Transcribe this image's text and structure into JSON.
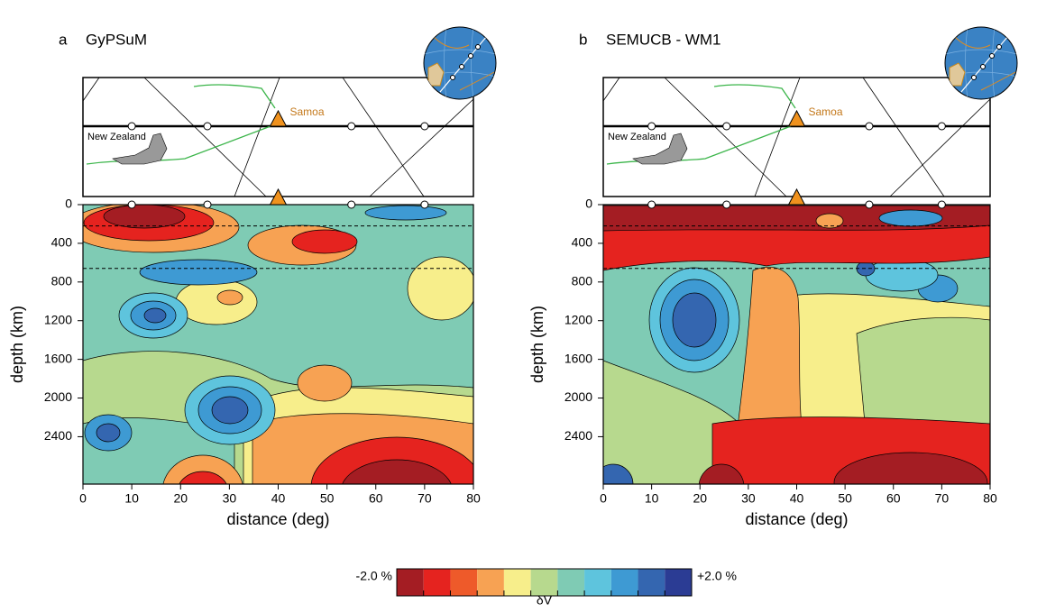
{
  "chart_data": [
    {
      "type": "contour",
      "panel": "a",
      "title": "GyPSuM",
      "xlabel": "distance (deg)",
      "ylabel": "depth (km)",
      "xlim": [
        0,
        80
      ],
      "ylim": [
        0,
        2890
      ],
      "y_inverted": true,
      "xticks": [
        0,
        10,
        20,
        30,
        40,
        50,
        60,
        70,
        80
      ],
      "yticks": [
        0,
        400,
        800,
        1200,
        1600,
        2000,
        2400
      ],
      "stations": [
        10,
        25.5,
        55,
        70
      ],
      "samoa_distance": 40,
      "discontinuities": [
        220,
        660
      ],
      "map_labels": [
        "New Zealand",
        "Samoa"
      ]
    },
    {
      "type": "contour",
      "panel": "b",
      "title": "SEMUCB - WM1",
      "xlabel": "distance (deg)",
      "ylabel": "depth (km)",
      "xlim": [
        0,
        80
      ],
      "ylim": [
        0,
        2890
      ],
      "y_inverted": true,
      "xticks": [
        0,
        10,
        20,
        30,
        40,
        50,
        60,
        70,
        80
      ],
      "yticks": [
        0,
        400,
        800,
        1200,
        1600,
        2000,
        2400
      ],
      "stations": [
        10,
        25.5,
        55,
        70
      ],
      "samoa_distance": 40,
      "discontinuities": [
        220,
        660
      ],
      "map_labels": [
        "New Zealand",
        "Samoa"
      ]
    }
  ],
  "colorbar": {
    "labels": [
      "-2.0 %",
      "+2.0 %"
    ],
    "title": "δV",
    "colors": [
      "#a41d23",
      "#e5231f",
      "#ee5a2a",
      "#f7a253",
      "#f7ee8b",
      "#b7d98e",
      "#7fcbb4",
      "#5ec4dd",
      "#3e9ad3",
      "#3466b0",
      "#2b3c94"
    ]
  }
}
